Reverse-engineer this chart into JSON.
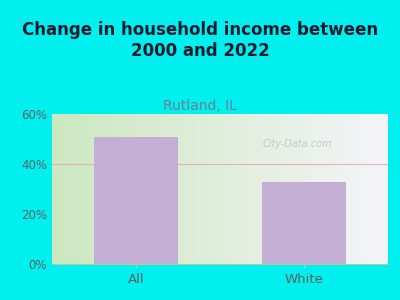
{
  "title": "Change in household income between\n2000 and 2022",
  "subtitle": "Rutland, IL",
  "categories": [
    "All",
    "White"
  ],
  "values": [
    51.0,
    33.0
  ],
  "bar_color": "#c4aed4",
  "background_color": "#00f0f0",
  "title_fontsize": 12,
  "title_color": "#1a1a2e",
  "subtitle_fontsize": 10,
  "subtitle_color": "#708090",
  "tick_label_color": "#606060",
  "ylim": [
    0,
    60
  ],
  "yticks": [
    0,
    20,
    40,
    60
  ],
  "ytick_labels": [
    "0%",
    "20%",
    "40%",
    "60%"
  ],
  "hline_color": "#e8b0b0",
  "hline_y": 40,
  "watermark": "City-Data.com",
  "watermark_color": "#b8c4cc",
  "plot_left_color": "#cce8c0",
  "plot_right_color": "#f4f4f8"
}
